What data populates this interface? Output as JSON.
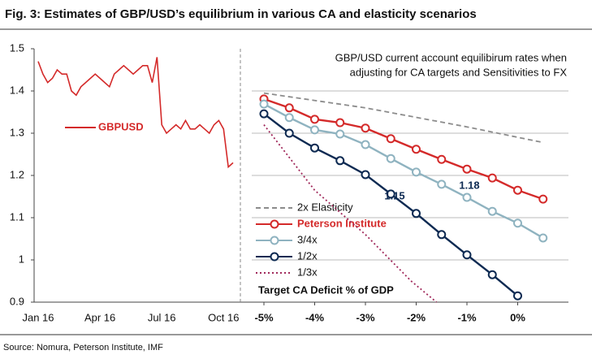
{
  "title": "Fig. 3: Estimates of GBP/USD’s equilibrium in various CA and elasticity scenarios",
  "source": "Source: Nomura, Peterson Institute, IMF",
  "chart_data": [
    {
      "type": "line",
      "categories": [
        "Jan 16",
        null,
        null,
        null,
        null,
        null,
        null,
        null,
        null,
        null,
        null,
        null,
        null,
        "Apr 16",
        null,
        null,
        null,
        null,
        null,
        null,
        null,
        null,
        null,
        null,
        null,
        null,
        "Jul 16",
        null,
        null,
        null,
        null,
        null,
        null,
        null,
        null,
        null,
        null,
        null,
        null,
        "Oct 16",
        null,
        null
      ],
      "series": [
        {
          "name": "GBPUSD",
          "color": "#d42a2a",
          "values": [
            1.47,
            1.44,
            1.42,
            1.43,
            1.45,
            1.44,
            1.44,
            1.4,
            1.39,
            1.41,
            1.42,
            1.43,
            1.44,
            1.43,
            1.42,
            1.41,
            1.44,
            1.45,
            1.46,
            1.45,
            1.44,
            1.45,
            1.46,
            1.46,
            1.42,
            1.48,
            1.32,
            1.3,
            1.31,
            1.32,
            1.31,
            1.33,
            1.31,
            1.31,
            1.32,
            1.31,
            1.3,
            1.32,
            1.33,
            1.31,
            1.22,
            1.23
          ]
        }
      ],
      "ylim": [
        0.9,
        1.5
      ],
      "yticks": [
        0.9,
        1,
        1.1,
        1.2,
        1.3,
        1.4,
        1.5
      ]
    },
    {
      "type": "line",
      "subtitle": [
        "GBP/USD current account equilibirum rates when",
        "adjusting for CA targets and Sensitivities to FX"
      ],
      "xlabel": "Target CA Deficit % of GDP",
      "annotations": [
        "1.15",
        "1.18"
      ],
      "x": [
        -5,
        -4.5,
        -4,
        -3.5,
        -3,
        -2.5,
        -2,
        -1.5,
        -1,
        -0.5,
        0,
        0.5
      ],
      "xlim": [
        -5.4,
        1.0
      ],
      "xticks": [
        {
          "value": -5,
          "label": "-5%"
        },
        {
          "value": -4,
          "label": "-4%"
        },
        {
          "value": -3,
          "label": "-3%"
        },
        {
          "value": -2,
          "label": "-2%"
        },
        {
          "value": -1,
          "label": "-1%"
        },
        {
          "value": 0,
          "label": "0%"
        }
      ],
      "ylim": [
        0.9,
        1.5
      ],
      "yticks": [
        1,
        1.1,
        1.2,
        1.3,
        1.4
      ],
      "grid": true,
      "series": [
        {
          "name": "2x Elasticity",
          "color": "#8c8c8c",
          "style": "dashed",
          "x": [
            -5,
            -3,
            -1,
            0.5
          ],
          "values": [
            1.395,
            1.36,
            1.315,
            1.278
          ]
        },
        {
          "name": "Peterson Institute",
          "color": "#d42a2a",
          "style": "solid",
          "marker": "circle",
          "values": [
            1.381,
            1.36,
            1.333,
            1.325,
            1.312,
            1.287,
            1.262,
            1.238,
            1.215,
            1.194,
            1.165,
            1.144
          ]
        },
        {
          "name": "3/4x",
          "color": "#8fb3c0",
          "style": "solid",
          "marker": "circle",
          "values": [
            1.369,
            1.337,
            1.308,
            1.298,
            1.273,
            1.24,
            1.208,
            1.179,
            1.148,
            1.115,
            1.087,
            1.052
          ]
        },
        {
          "name": "1/2x",
          "color": "#0d2a52",
          "style": "solid",
          "marker": "circle",
          "values": [
            1.346,
            1.3,
            1.265,
            1.235,
            1.202,
            1.156,
            1.11,
            1.06,
            1.012,
            0.965,
            0.915,
            null
          ]
        },
        {
          "name": "1/3x",
          "color": "#a0285a",
          "style": "dotted",
          "x": [
            -5,
            -4,
            -3,
            -2.1,
            -1.6
          ],
          "values": [
            1.32,
            1.165,
            1.06,
            0.95,
            0.9
          ]
        }
      ]
    }
  ]
}
